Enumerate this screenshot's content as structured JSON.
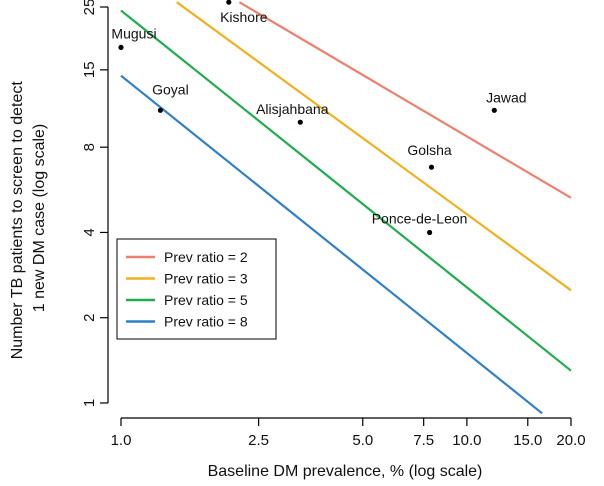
{
  "chart_data": {
    "type": "line",
    "title": "",
    "xlabel": "Baseline DM prevalence, % (log scale)",
    "ylabel_lines": [
      "Number TB patients to screen to detect",
      "1 new DM case (log scale)"
    ],
    "x_scale": "log",
    "y_scale": "log",
    "xlim": [
      0.9,
      23
    ],
    "ylim": [
      0.92,
      26
    ],
    "x_ticks": [
      1.0,
      2.5,
      5.0,
      7.5,
      10.0,
      15.0,
      20.0
    ],
    "x_tick_labels": [
      "1.0",
      "2.5",
      "5.0",
      "7.5",
      "10.0",
      "15.0",
      "20.0"
    ],
    "y_ticks": [
      1,
      2,
      4,
      8,
      15,
      25
    ],
    "y_tick_labels": [
      "1",
      "2",
      "4",
      "8",
      "15",
      "25"
    ],
    "grid": false,
    "legend_position": "center-left",
    "series": [
      {
        "name": "Prev ratio = 2",
        "color": "#ef7f6d",
        "x": [
          2.2,
          20.0
        ],
        "y": [
          26.0,
          5.3
        ]
      },
      {
        "name": "Prev ratio = 3",
        "color": "#f2b01e",
        "x": [
          1.45,
          20.0
        ],
        "y": [
          26.0,
          2.5
        ]
      },
      {
        "name": "Prev ratio = 5",
        "color": "#1fad4d",
        "x": [
          1.0,
          20.0
        ],
        "y": [
          24.3,
          1.3
        ]
      },
      {
        "name": "Prev ratio = 8",
        "color": "#2f80c8",
        "x": [
          1.0,
          16.5
        ],
        "y": [
          14.3,
          0.92
        ]
      }
    ],
    "points": [
      {
        "label": "Kishore",
        "x": 2.05,
        "y": 26.0
      },
      {
        "label": "Mugusi",
        "x": 1.0,
        "y": 18.0
      },
      {
        "label": "Goyal",
        "x": 1.3,
        "y": 10.8
      },
      {
        "label": "Alisjahbana",
        "x": 3.3,
        "y": 9.8
      },
      {
        "label": "Jawad",
        "x": 12.0,
        "y": 10.8
      },
      {
        "label": "Golsha",
        "x": 7.9,
        "y": 6.8
      },
      {
        "label": "Ponce-de-Leon",
        "x": 7.8,
        "y": 4.0
      }
    ]
  }
}
